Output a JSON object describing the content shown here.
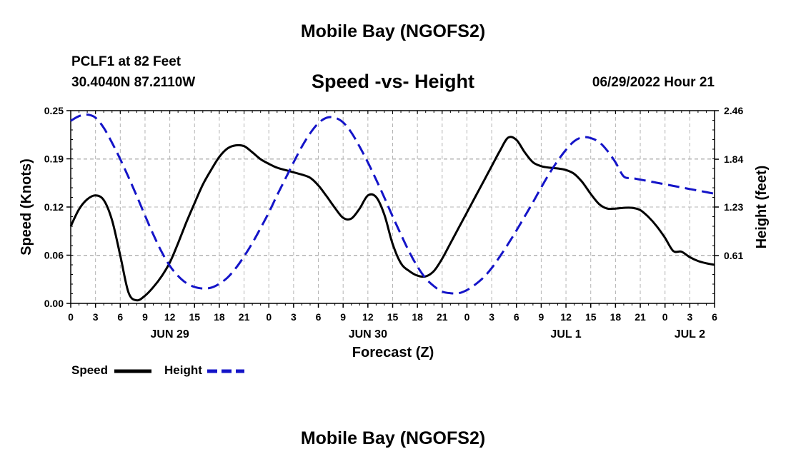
{
  "header": {
    "title": "Mobile Bay (NGOFS2)",
    "station": "PCLF1 at 82 Feet",
    "coords": "30.4040N  87.2110W",
    "chart_title": "Speed -vs- Height",
    "datetime": "06/29/2022 Hour 21"
  },
  "footer": {
    "title": "Mobile Bay (NGOFS2)"
  },
  "legend": {
    "speed_label": "Speed",
    "height_label": "Height"
  },
  "colors": {
    "speed": "#000000",
    "height": "#1414c8",
    "grid": "#b4b4b4"
  },
  "chart_data": {
    "type": "line",
    "title": "Speed -vs- Height",
    "xlabel": "Forecast (Z)",
    "ylabel": "Speed (Knots)",
    "y2label": "Height (feet)",
    "xlim": [
      0,
      78
    ],
    "ylim": [
      0,
      0.25
    ],
    "y2lim": [
      0.0,
      2.46
    ],
    "x_tick_labels": [
      "0",
      "3",
      "6",
      "9",
      "12",
      "15",
      "18",
      "21",
      "0",
      "3",
      "6",
      "9",
      "12",
      "15",
      "18",
      "21",
      "0",
      "3",
      "6",
      "9",
      "12",
      "15",
      "18",
      "21",
      "0",
      "3",
      "6"
    ],
    "y_ticks": [
      "0.00",
      "0.06",
      "0.12",
      "0.19",
      "0.25"
    ],
    "y2_ticks": [
      "0.61",
      "1.23",
      "1.84",
      "2.46"
    ],
    "y2_tick_values": [
      0.61,
      1.23,
      1.84,
      2.46
    ],
    "date_labels": [
      {
        "label": "JUN 29",
        "hour": 12
      },
      {
        "label": "JUN 30",
        "hour": 36
      },
      {
        "label": "JUL 1",
        "hour": 60
      },
      {
        "label": "JUL 2",
        "hour": 75
      }
    ],
    "series": [
      {
        "name": "Speed",
        "axis": "left",
        "style": "solid",
        "x": [
          0,
          1,
          2,
          3,
          4,
          5,
          6,
          7,
          8,
          9,
          10,
          11,
          12,
          13,
          14,
          15,
          16,
          17,
          18,
          19,
          20,
          21,
          22,
          23,
          24,
          25,
          26,
          27,
          28,
          29,
          30,
          31,
          32,
          33,
          34,
          35,
          36,
          37,
          38,
          39,
          40,
          41,
          42,
          43,
          44,
          45,
          46,
          47,
          48,
          49,
          50,
          51,
          52,
          53,
          54,
          55,
          56,
          57,
          58,
          59,
          60,
          61,
          62,
          63,
          64,
          65,
          66,
          67,
          68,
          69,
          70,
          71,
          72,
          73,
          74,
          75,
          76,
          77,
          78
        ],
        "values": [
          0.1,
          0.122,
          0.135,
          0.14,
          0.134,
          0.108,
          0.062,
          0.014,
          0.004,
          0.01,
          0.021,
          0.035,
          0.053,
          0.078,
          0.105,
          0.13,
          0.154,
          0.173,
          0.19,
          0.201,
          0.205,
          0.204,
          0.196,
          0.187,
          0.181,
          0.176,
          0.173,
          0.17,
          0.167,
          0.163,
          0.153,
          0.139,
          0.124,
          0.111,
          0.11,
          0.123,
          0.14,
          0.138,
          0.115,
          0.077,
          0.052,
          0.042,
          0.036,
          0.035,
          0.042,
          0.058,
          0.078,
          0.098,
          0.118,
          0.138,
          0.158,
          0.178,
          0.198,
          0.215,
          0.212,
          0.196,
          0.183,
          0.178,
          0.176,
          0.175,
          0.173,
          0.168,
          0.157,
          0.142,
          0.129,
          0.123,
          0.123,
          0.124,
          0.124,
          0.121,
          0.112,
          0.1,
          0.085,
          0.068,
          0.067,
          0.06,
          0.055,
          0.052,
          0.05
        ]
      },
      {
        "name": "Height",
        "axis": "right",
        "style": "dashed",
        "x": [
          0,
          1,
          2,
          3,
          4,
          5,
          6,
          7,
          8,
          9,
          10,
          11,
          12,
          13,
          14,
          15,
          16,
          17,
          18,
          19,
          20,
          21,
          22,
          23,
          24,
          25,
          26,
          27,
          28,
          29,
          30,
          31,
          32,
          33,
          34,
          35,
          36,
          37,
          38,
          39,
          40,
          41,
          42,
          43,
          44,
          45,
          46,
          47,
          48,
          49,
          50,
          51,
          52,
          53,
          54,
          55,
          56,
          57,
          58,
          59,
          60,
          61,
          62,
          63,
          64,
          65,
          66,
          67,
          68,
          69,
          70,
          71,
          72,
          73,
          74,
          75,
          76,
          77,
          78
        ],
        "values": [
          2.33,
          2.39,
          2.41,
          2.37,
          2.24,
          2.05,
          1.84,
          1.61,
          1.37,
          1.12,
          0.88,
          0.66,
          0.48,
          0.35,
          0.26,
          0.21,
          0.19,
          0.2,
          0.25,
          0.33,
          0.45,
          0.6,
          0.77,
          0.96,
          1.16,
          1.38,
          1.59,
          1.8,
          2.0,
          2.17,
          2.3,
          2.37,
          2.37,
          2.31,
          2.18,
          2.0,
          1.8,
          1.58,
          1.35,
          1.11,
          0.88,
          0.66,
          0.47,
          0.32,
          0.22,
          0.15,
          0.13,
          0.13,
          0.17,
          0.24,
          0.33,
          0.45,
          0.6,
          0.76,
          0.93,
          1.11,
          1.29,
          1.48,
          1.66,
          1.82,
          1.96,
          2.07,
          2.12,
          2.11,
          2.06,
          1.95,
          1.8,
          1.62,
          1.6,
          1.58,
          1.56,
          1.54,
          1.52,
          1.5,
          1.48,
          1.46,
          1.44,
          1.42,
          1.4
        ]
      }
    ]
  }
}
